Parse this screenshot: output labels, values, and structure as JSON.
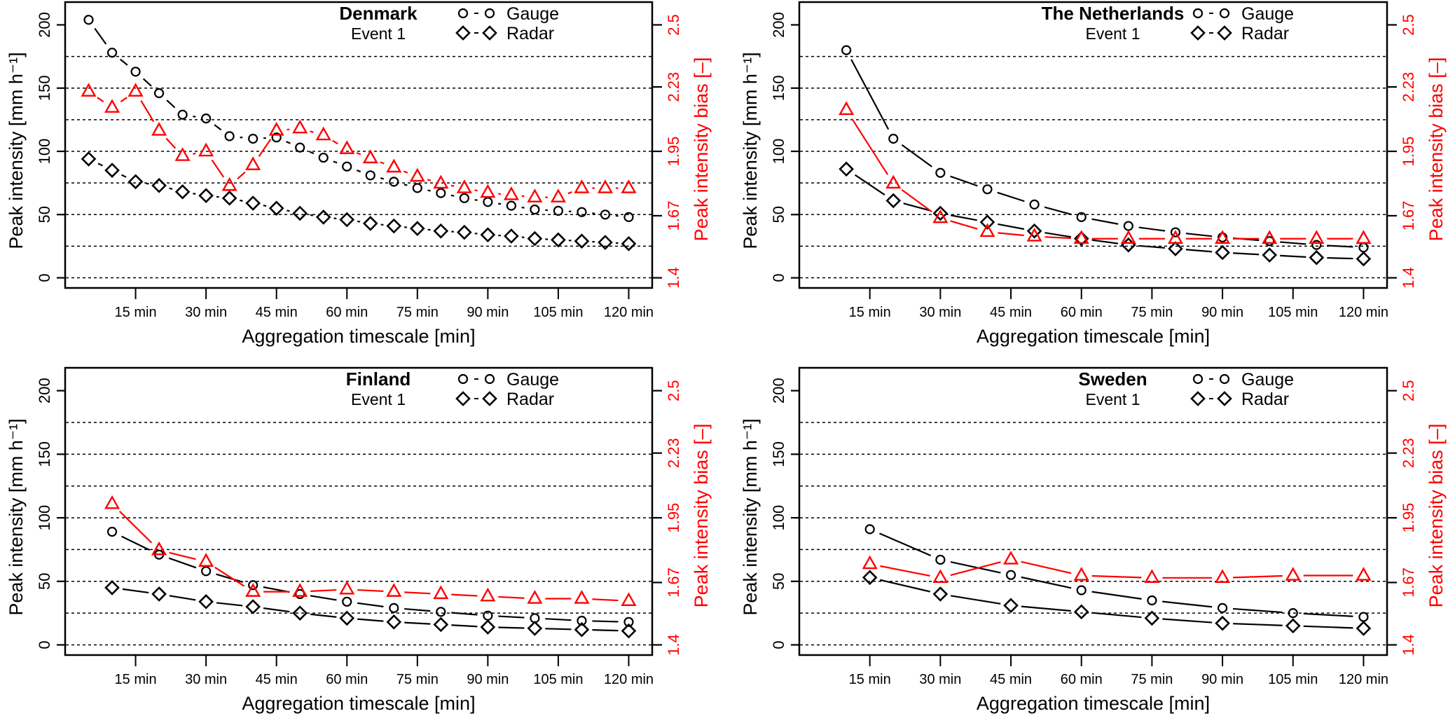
{
  "figure": {
    "legend": {
      "gauge_label": "Gauge",
      "radar_label": "Radar",
      "gauge_symbol": "o - o",
      "radar_symbol": "◇ - ◇"
    },
    "colors": {
      "gauge": "#000000",
      "radar": "#000000",
      "bias": "#ff0000",
      "grid": "#000000"
    }
  },
  "chart_data": [
    {
      "type": "line",
      "title": "Denmark",
      "subtitle": "Event 1",
      "xlabel": "Aggregation timescale [min]",
      "ylabel": "Peak intensity [mm h⁻¹]",
      "y2label": "Peak intensity bias [–]",
      "xlim": [
        0,
        125
      ],
      "ylim": [
        -8,
        218
      ],
      "y2lim": [
        1.356,
        2.599
      ],
      "xticks": [
        15,
        30,
        45,
        60,
        75,
        90,
        105,
        120
      ],
      "xtick_labels": [
        "15 min",
        "30 min",
        "45 min",
        "60 min",
        "75 min",
        "90 min",
        "105 min",
        "120 min"
      ],
      "yticks": [
        0,
        50,
        100,
        150,
        200
      ],
      "ytick_labels": [
        "0",
        "50",
        "100",
        "150",
        "200"
      ],
      "y2ticks": [
        1.4,
        1.67,
        1.95,
        2.23,
        2.5
      ],
      "y2tick_labels": [
        "1.4",
        "1.67",
        "1.95",
        "2.23",
        "2.5"
      ],
      "gridlines_y": [
        0,
        25,
        50,
        75,
        100,
        125,
        150,
        175
      ],
      "legend_position": "top-right",
      "x": [
        5,
        10,
        15,
        20,
        25,
        30,
        35,
        40,
        45,
        50,
        55,
        60,
        65,
        70,
        75,
        80,
        85,
        90,
        95,
        100,
        105,
        110,
        115,
        120
      ],
      "series": [
        {
          "name": "Gauge",
          "axis": "left",
          "marker": "circle",
          "color": "#000000",
          "values": [
            204,
            178,
            163,
            146,
            129,
            126,
            112,
            110,
            111,
            103,
            95,
            88,
            81,
            76,
            71,
            67,
            63,
            60,
            57,
            54,
            53,
            52,
            50,
            48
          ]
        },
        {
          "name": "Radar",
          "axis": "left",
          "marker": "diamond",
          "color": "#000000",
          "values": [
            94,
            85,
            76,
            73,
            68,
            65,
            63,
            59,
            55,
            51,
            48,
            46,
            43,
            41,
            39,
            37,
            36,
            34,
            33,
            31,
            30,
            29,
            28,
            27
          ]
        },
        {
          "name": "Bias",
          "axis": "right",
          "marker": "triangle",
          "color": "#ff0000",
          "values": [
            2.21,
            2.14,
            2.21,
            2.04,
            1.93,
            1.95,
            1.8,
            1.89,
            2.04,
            2.05,
            2.02,
            1.96,
            1.92,
            1.88,
            1.84,
            1.81,
            1.79,
            1.77,
            1.76,
            1.75,
            1.75,
            1.79,
            1.79,
            1.79
          ]
        }
      ]
    },
    {
      "type": "line",
      "title": "The Netherlands",
      "subtitle": "Event 1",
      "xlabel": "Aggregation timescale [min]",
      "ylabel": "Peak intensity [mm h⁻¹]",
      "y2label": "Peak intensity bias [–]",
      "xlim": [
        0,
        125
      ],
      "ylim": [
        -8,
        218
      ],
      "y2lim": [
        1.356,
        2.599
      ],
      "xticks": [
        15,
        30,
        45,
        60,
        75,
        90,
        105,
        120
      ],
      "xtick_labels": [
        "15 min",
        "30 min",
        "45 min",
        "60 min",
        "75 min",
        "90 min",
        "105 min",
        "120 min"
      ],
      "yticks": [
        0,
        50,
        100,
        150,
        200
      ],
      "ytick_labels": [
        "0",
        "50",
        "100",
        "150",
        "200"
      ],
      "y2ticks": [
        1.4,
        1.67,
        1.95,
        2.23,
        2.5
      ],
      "y2tick_labels": [
        "1.4",
        "1.67",
        "1.95",
        "2.23",
        "2.5"
      ],
      "gridlines_y": [
        0,
        25,
        50,
        75,
        100,
        125,
        150,
        175
      ],
      "legend_position": "top-right",
      "x": [
        10,
        20,
        30,
        40,
        50,
        60,
        70,
        80,
        90,
        100,
        110,
        120
      ],
      "series": [
        {
          "name": "Gauge",
          "axis": "left",
          "marker": "circle",
          "color": "#000000",
          "values": [
            180,
            110,
            83,
            70,
            58,
            48,
            41,
            36,
            32,
            29,
            26,
            24
          ]
        },
        {
          "name": "Radar",
          "axis": "left",
          "marker": "diamond",
          "color": "#000000",
          "values": [
            86,
            61,
            51,
            44,
            37,
            31,
            26,
            23,
            20,
            18,
            16,
            15
          ]
        },
        {
          "name": "Bias",
          "axis": "right",
          "marker": "triangle",
          "color": "#ff0000",
          "values": [
            2.13,
            1.81,
            1.66,
            1.6,
            1.58,
            1.57,
            1.57,
            1.57,
            1.57,
            1.57,
            1.57,
            1.57
          ]
        }
      ]
    },
    {
      "type": "line",
      "title": "Finland",
      "subtitle": "Event 1",
      "xlabel": "Aggregation timescale [min]",
      "ylabel": "Peak intensity [mm h⁻¹]",
      "y2label": "Peak intensity bias [–]",
      "xlim": [
        0,
        125
      ],
      "ylim": [
        -8,
        218
      ],
      "y2lim": [
        1.356,
        2.599
      ],
      "xticks": [
        15,
        30,
        45,
        60,
        75,
        90,
        105,
        120
      ],
      "xtick_labels": [
        "15 min",
        "30 min",
        "45 min",
        "60 min",
        "75 min",
        "90 min",
        "105 min",
        "120 min"
      ],
      "yticks": [
        0,
        50,
        100,
        150,
        200
      ],
      "ytick_labels": [
        "0",
        "50",
        "100",
        "150",
        "200"
      ],
      "y2ticks": [
        1.4,
        1.67,
        1.95,
        2.23,
        2.5
      ],
      "y2tick_labels": [
        "1.4",
        "1.67",
        "1.95",
        "2.23",
        "2.5"
      ],
      "gridlines_y": [
        0,
        25,
        50,
        75,
        100,
        125,
        150,
        175
      ],
      "legend_position": "top-right",
      "x": [
        10,
        20,
        30,
        40,
        50,
        60,
        70,
        80,
        90,
        100,
        110,
        120
      ],
      "series": [
        {
          "name": "Gauge",
          "axis": "left",
          "marker": "circle",
          "color": "#000000",
          "values": [
            89,
            71,
            58,
            47,
            40,
            34,
            29,
            26,
            23,
            21,
            19,
            18
          ]
        },
        {
          "name": "Radar",
          "axis": "left",
          "marker": "diamond",
          "color": "#000000",
          "values": [
            45,
            40,
            34,
            30,
            25,
            21,
            18,
            16,
            14,
            13,
            12,
            11
          ]
        },
        {
          "name": "Bias",
          "axis": "right",
          "marker": "triangle",
          "color": "#ff0000",
          "values": [
            2.01,
            1.81,
            1.76,
            1.63,
            1.63,
            1.64,
            1.63,
            1.62,
            1.61,
            1.6,
            1.6,
            1.59
          ]
        }
      ]
    },
    {
      "type": "line",
      "title": "Sweden",
      "subtitle": "Event 1",
      "xlabel": "Aggregation timescale [min]",
      "ylabel": "Peak intensity [mm h⁻¹]",
      "y2label": "Peak intensity bias [–]",
      "xlim": [
        0,
        125
      ],
      "ylim": [
        -8,
        218
      ],
      "y2lim": [
        1.356,
        2.599
      ],
      "xticks": [
        15,
        30,
        45,
        60,
        75,
        90,
        105,
        120
      ],
      "xtick_labels": [
        "15 min",
        "30 min",
        "45 min",
        "60 min",
        "75 min",
        "90 min",
        "105 min",
        "120 min"
      ],
      "yticks": [
        0,
        50,
        100,
        150,
        200
      ],
      "ytick_labels": [
        "0",
        "50",
        "100",
        "150",
        "200"
      ],
      "y2ticks": [
        1.4,
        1.67,
        1.95,
        2.23,
        2.5
      ],
      "y2tick_labels": [
        "1.4",
        "1.67",
        "1.95",
        "2.23",
        "2.5"
      ],
      "gridlines_y": [
        0,
        25,
        50,
        75,
        100,
        125,
        150,
        175
      ],
      "legend_position": "top-right",
      "x": [
        15,
        30,
        45,
        60,
        75,
        90,
        105,
        120
      ],
      "series": [
        {
          "name": "Gauge",
          "axis": "left",
          "marker": "circle",
          "color": "#000000",
          "values": [
            91,
            67,
            55,
            43,
            35,
            29,
            25,
            22
          ]
        },
        {
          "name": "Radar",
          "axis": "left",
          "marker": "diamond",
          "color": "#000000",
          "values": [
            53,
            40,
            31,
            26,
            21,
            17,
            15,
            13
          ]
        },
        {
          "name": "Bias",
          "axis": "right",
          "marker": "triangle",
          "color": "#ff0000",
          "values": [
            1.75,
            1.69,
            1.77,
            1.7,
            1.69,
            1.69,
            1.7,
            1.7
          ]
        }
      ]
    }
  ]
}
